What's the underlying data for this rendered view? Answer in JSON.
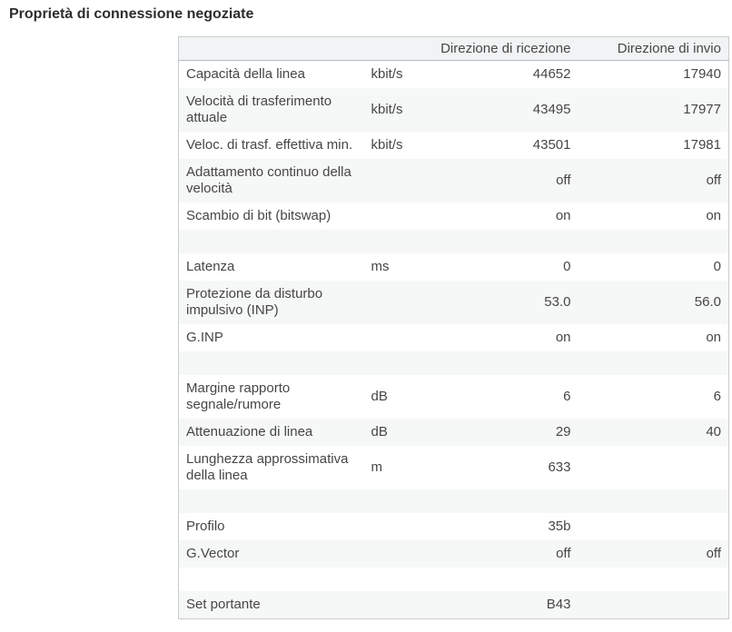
{
  "page": {
    "title": "Proprietà di connessione negoziate"
  },
  "connection_table": {
    "headers": {
      "label": "",
      "unit": "",
      "reception": "Direzione di ricezione",
      "send": "Direzione di invio"
    },
    "rows": [
      {
        "label": "Capacità della linea",
        "unit": "kbit/s",
        "reception": "44652",
        "send": "17940"
      },
      {
        "label": "Velocità di trasferimento attuale",
        "unit": "kbit/s",
        "reception": "43495",
        "send": "17977"
      },
      {
        "label": "Veloc. di trasf. effettiva min.",
        "unit": "kbit/s",
        "reception": "43501",
        "send": "17981"
      },
      {
        "label": "Adattamento continuo della velocità",
        "unit": "",
        "reception": "off",
        "send": "off"
      },
      {
        "label": "Scambio di bit (bitswap)",
        "unit": "",
        "reception": "on",
        "send": "on"
      },
      {
        "spacer": true
      },
      {
        "label": "Latenza",
        "unit": "ms",
        "reception": "0",
        "send": "0"
      },
      {
        "label": "Protezione da disturbo impulsivo (INP)",
        "unit": "",
        "reception": "53.0",
        "send": "56.0"
      },
      {
        "label": "G.INP",
        "unit": "",
        "reception": "on",
        "send": "on"
      },
      {
        "spacer": true
      },
      {
        "label": "Margine rapporto segnale/rumore",
        "unit": "dB",
        "reception": "6",
        "send": "6"
      },
      {
        "label": "Attenuazione di linea",
        "unit": "dB",
        "reception": "29",
        "send": "40"
      },
      {
        "label": "Lunghezza approssimativa della linea",
        "unit": "m",
        "reception": "633",
        "send": ""
      },
      {
        "spacer": true
      },
      {
        "label": "Profilo",
        "unit": "",
        "reception": "35b",
        "send": ""
      },
      {
        "label": "G.Vector",
        "unit": "",
        "reception": "off",
        "send": "off"
      },
      {
        "spacer": true
      },
      {
        "label": "Set portante",
        "unit": "",
        "reception": "B43",
        "send": ""
      }
    ]
  },
  "colors": {
    "text": "#464646",
    "title_text": "#2d2d2d",
    "table_border": "#c7cdd1",
    "header_border": "#b6bcc0",
    "header_bg": "#f1f3f4",
    "stripe_bg": "#f6f7f7",
    "row_bg": "#ffffff"
  }
}
